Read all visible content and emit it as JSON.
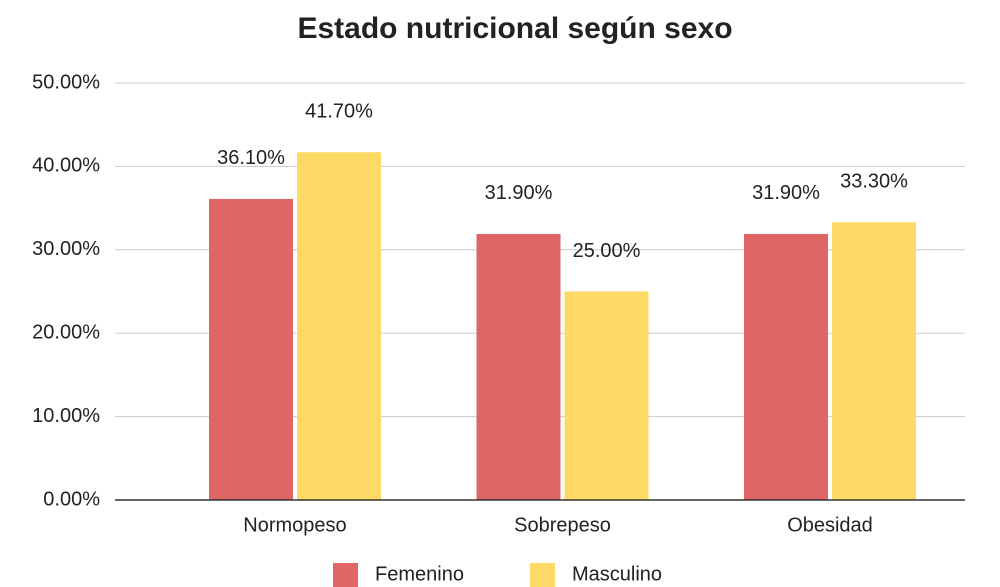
{
  "chart_data": {
    "type": "bar",
    "title": "Estado nutricional según sexo",
    "categories": [
      "Normopeso",
      "Sobrepeso",
      "Obesidad"
    ],
    "series": [
      {
        "name": "Femenino",
        "color": "#e06666",
        "values": [
          36.1,
          31.9,
          31.9
        ],
        "value_labels": [
          "36.10%",
          "31.90%",
          "31.90%"
        ]
      },
      {
        "name": "Masculino",
        "color": "#ffd966",
        "values": [
          41.7,
          25.0,
          33.3
        ],
        "value_labels": [
          "41.70%",
          "25.00%",
          "33.30%"
        ]
      }
    ],
    "ylim": [
      0,
      50
    ],
    "yticks": [
      {
        "value": 0,
        "label": "0.00%"
      },
      {
        "value": 10,
        "label": "10.00%"
      },
      {
        "value": 20,
        "label": "20.00%"
      },
      {
        "value": 30,
        "label": "30.00%"
      },
      {
        "value": 40,
        "label": "40.00%"
      },
      {
        "value": 50,
        "label": "50.00%"
      }
    ],
    "grid": true,
    "legend": "bottom"
  }
}
